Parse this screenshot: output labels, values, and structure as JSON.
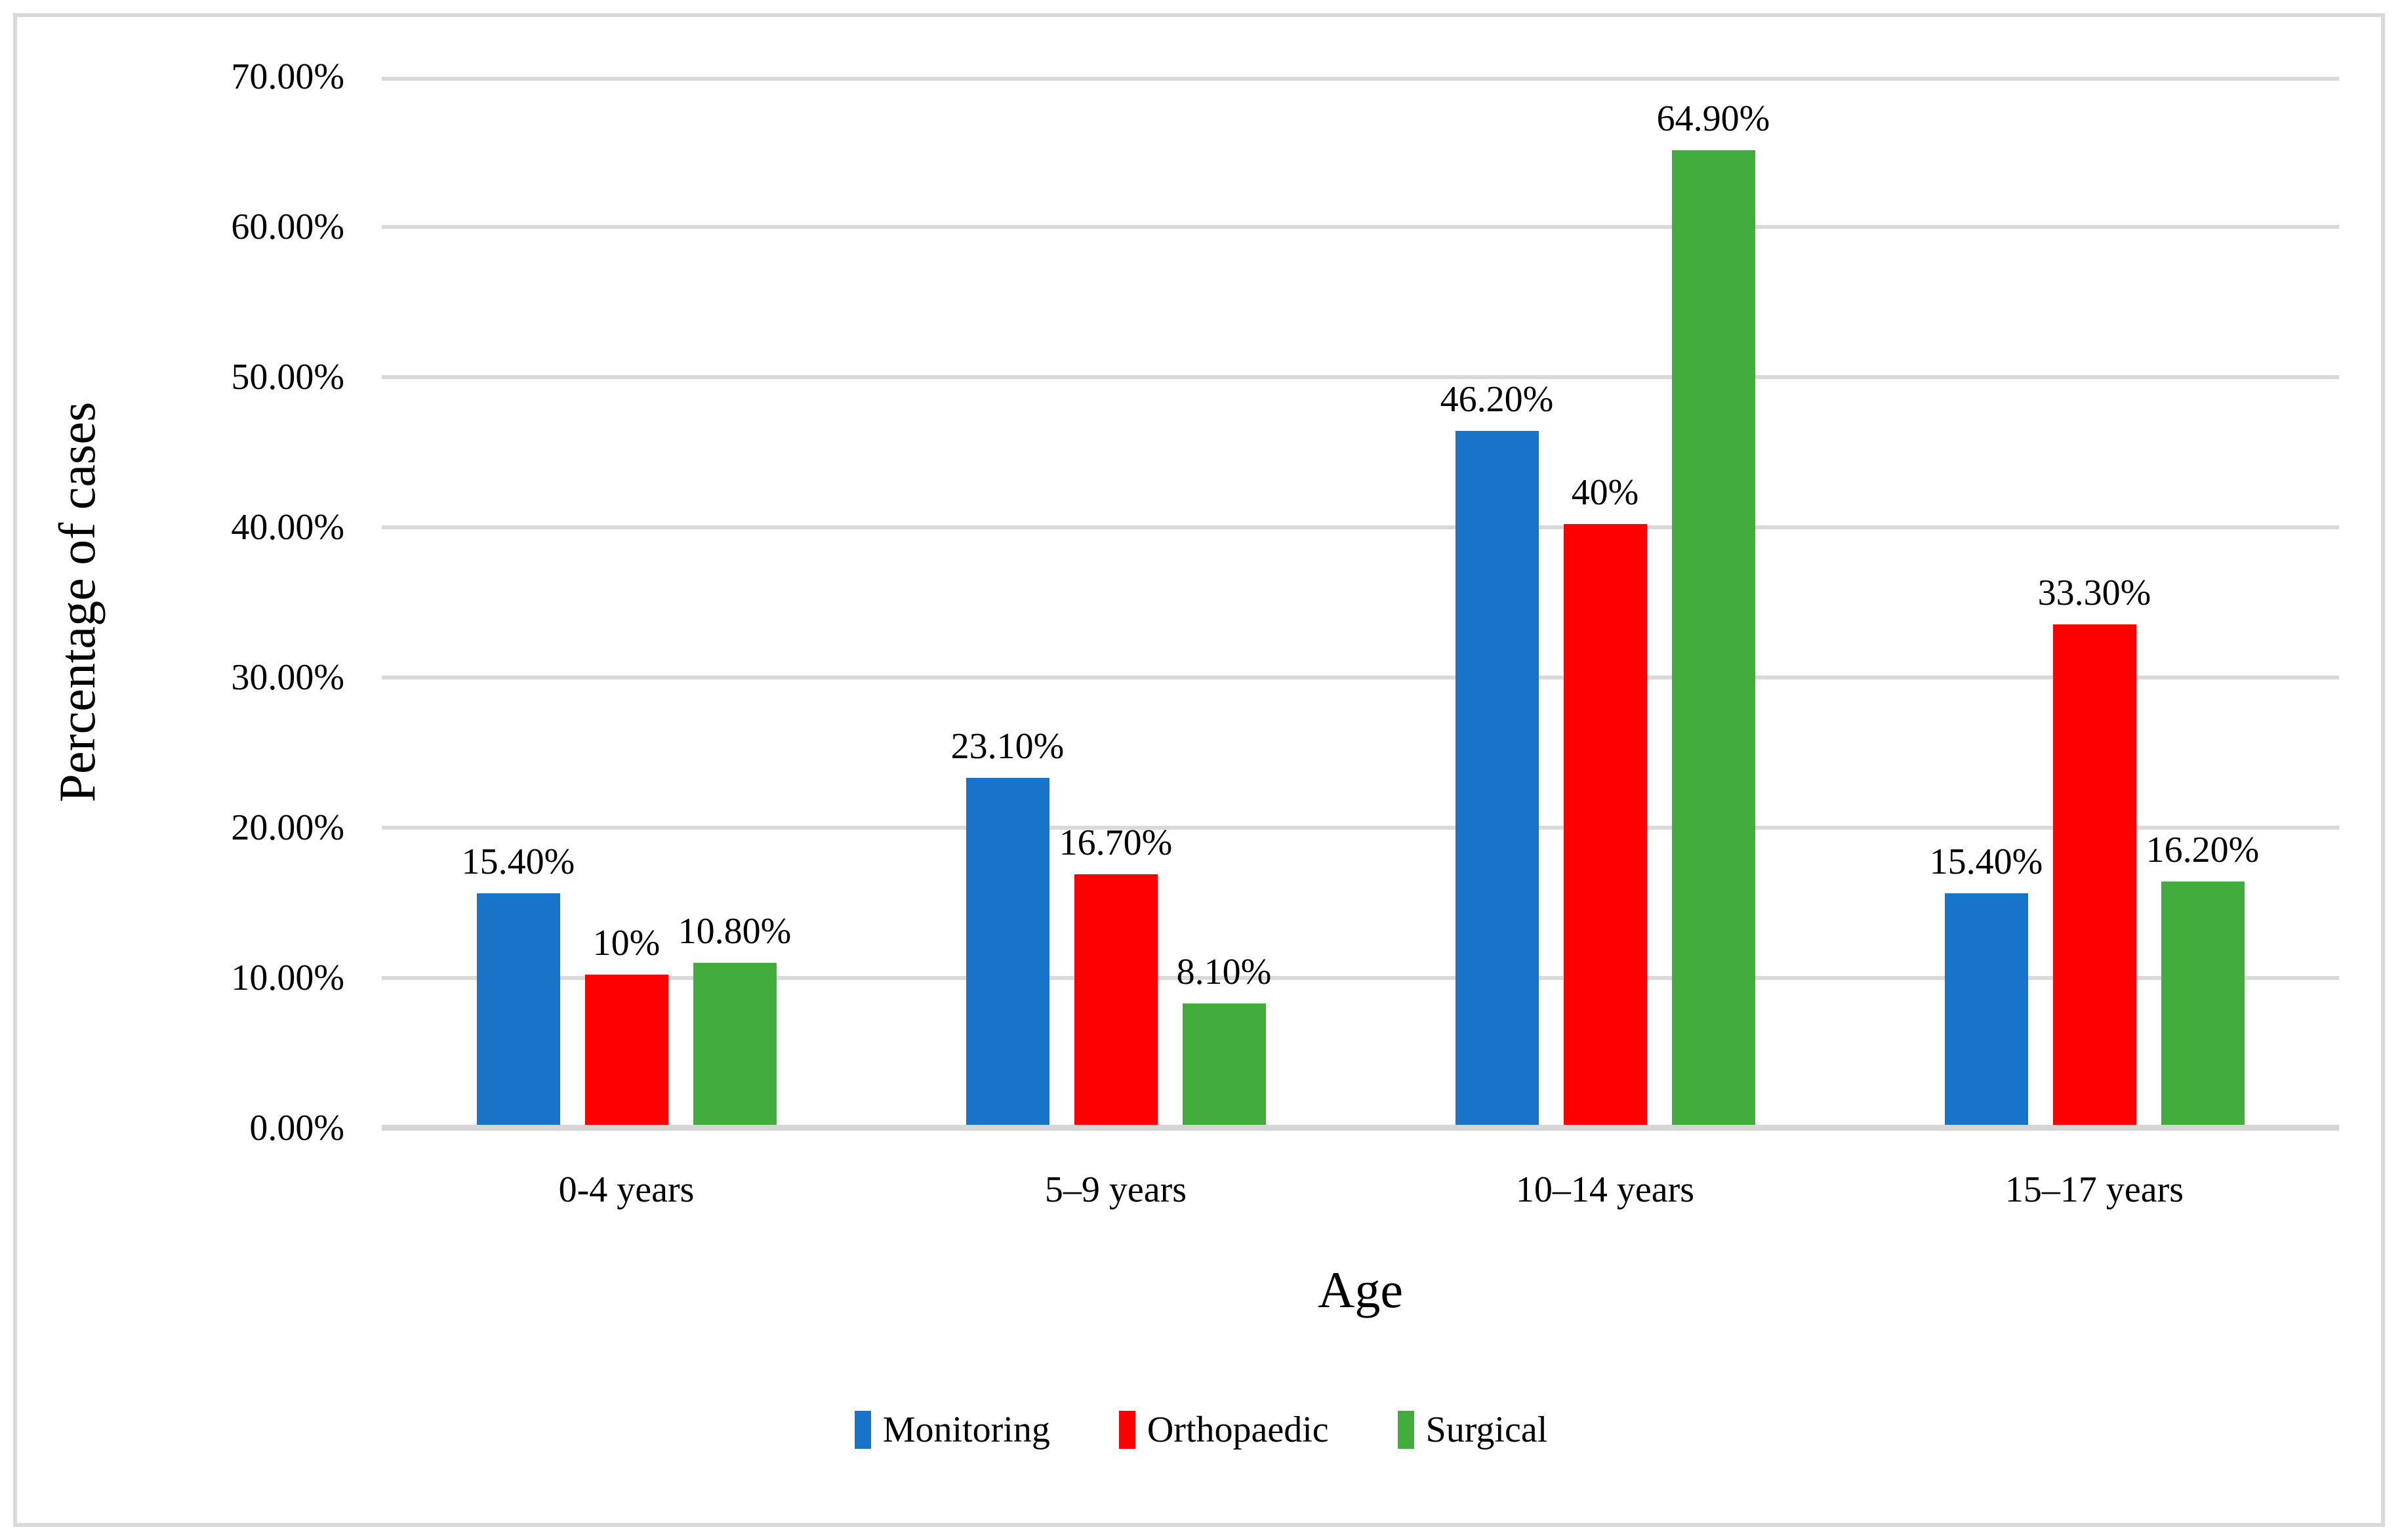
{
  "chart_data": {
    "type": "bar",
    "title": "",
    "xlabel": "Age",
    "ylabel": "Percentage of cases",
    "ylim": [
      0,
      70
    ],
    "ytick_step": 10,
    "grid": true,
    "legend_position": "bottom",
    "gridline_color": "#d9d9d9",
    "yticks": [
      "70.00%",
      "60.00%",
      "50.00%",
      "40.00%",
      "30.00%",
      "20.00%",
      "10.00%",
      "0.00%"
    ],
    "categories": [
      "0-4 years",
      "5–9 years",
      "10–14 years",
      "15–17 years"
    ],
    "series": [
      {
        "name": "Monitoring",
        "color": "#1874c8",
        "values": [
          15.4,
          23.1,
          46.2,
          15.4
        ],
        "labels": [
          "15.40%",
          "23.10%",
          "46.20%",
          "15.40%"
        ]
      },
      {
        "name": "Orthopaedic",
        "color": "#ff0000",
        "values": [
          10,
          16.7,
          40,
          33.3
        ],
        "labels": [
          "10%",
          "16.70%",
          "40%",
          "33.30%"
        ]
      },
      {
        "name": "Surgical",
        "color": "#42ac3c",
        "values": [
          10.8,
          8.1,
          64.9,
          16.2
        ],
        "labels": [
          "10.80%",
          "8.10%",
          "64.90%",
          "16.20%"
        ]
      }
    ]
  }
}
